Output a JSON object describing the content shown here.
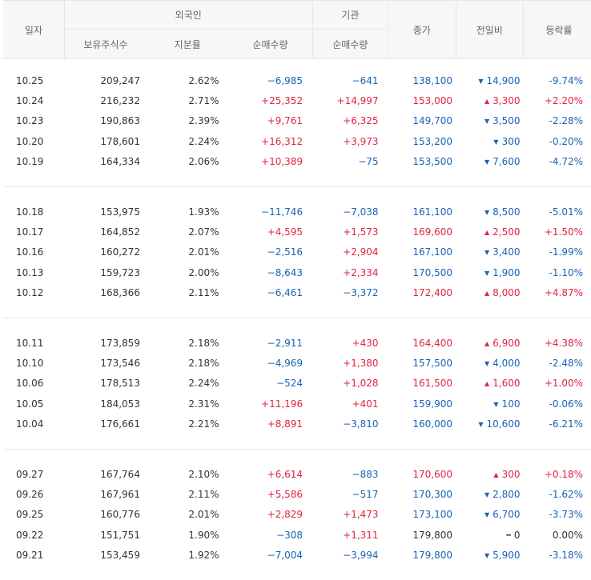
{
  "header": {
    "date": "일자",
    "foreign": "외국인",
    "institution": "기관",
    "close": "종가",
    "change": "전일비",
    "rate": "등락률",
    "holdings": "보유주식수",
    "ratio": "지분율",
    "foreign_net": "순매수량",
    "inst_net": "순매수량"
  },
  "colors": {
    "up": "#e12343",
    "down": "#1763b6",
    "border": "#e4e6ea",
    "header_bg": "#f6f7f9"
  },
  "groups": [
    [
      {
        "date": "10.25",
        "holdings": "209,247",
        "ratio": "2.62%",
        "foreign_net": "−6,985",
        "fn_dir": "down",
        "inst_net": "−641",
        "in_dir": "down",
        "close": "138,100",
        "close_dir": "down",
        "change": "14,900",
        "chg_dir": "down",
        "rate": "-9.74%",
        "rate_dir": "down"
      },
      {
        "date": "10.24",
        "holdings": "216,232",
        "ratio": "2.71%",
        "foreign_net": "+25,352",
        "fn_dir": "up",
        "inst_net": "+14,997",
        "in_dir": "up",
        "close": "153,000",
        "close_dir": "up",
        "change": "3,300",
        "chg_dir": "up",
        "rate": "+2.20%",
        "rate_dir": "up"
      },
      {
        "date": "10.23",
        "holdings": "190,863",
        "ratio": "2.39%",
        "foreign_net": "+9,761",
        "fn_dir": "up",
        "inst_net": "+6,325",
        "in_dir": "up",
        "close": "149,700",
        "close_dir": "down",
        "change": "3,500",
        "chg_dir": "down",
        "rate": "-2.28%",
        "rate_dir": "down"
      },
      {
        "date": "10.20",
        "holdings": "178,601",
        "ratio": "2.24%",
        "foreign_net": "+16,312",
        "fn_dir": "up",
        "inst_net": "+3,973",
        "in_dir": "up",
        "close": "153,200",
        "close_dir": "down",
        "change": "300",
        "chg_dir": "down",
        "rate": "-0.20%",
        "rate_dir": "down"
      },
      {
        "date": "10.19",
        "holdings": "164,334",
        "ratio": "2.06%",
        "foreign_net": "+10,389",
        "fn_dir": "up",
        "inst_net": "−75",
        "in_dir": "down",
        "close": "153,500",
        "close_dir": "down",
        "change": "7,600",
        "chg_dir": "down",
        "rate": "-4.72%",
        "rate_dir": "down"
      }
    ],
    [
      {
        "date": "10.18",
        "holdings": "153,975",
        "ratio": "1.93%",
        "foreign_net": "−11,746",
        "fn_dir": "down",
        "inst_net": "−7,038",
        "in_dir": "down",
        "close": "161,100",
        "close_dir": "down",
        "change": "8,500",
        "chg_dir": "down",
        "rate": "-5.01%",
        "rate_dir": "down"
      },
      {
        "date": "10.17",
        "holdings": "164,852",
        "ratio": "2.07%",
        "foreign_net": "+4,595",
        "fn_dir": "up",
        "inst_net": "+1,573",
        "in_dir": "up",
        "close": "169,600",
        "close_dir": "up",
        "change": "2,500",
        "chg_dir": "up",
        "rate": "+1.50%",
        "rate_dir": "up"
      },
      {
        "date": "10.16",
        "holdings": "160,272",
        "ratio": "2.01%",
        "foreign_net": "−2,516",
        "fn_dir": "down",
        "inst_net": "+2,904",
        "in_dir": "up",
        "close": "167,100",
        "close_dir": "down",
        "change": "3,400",
        "chg_dir": "down",
        "rate": "-1.99%",
        "rate_dir": "down"
      },
      {
        "date": "10.13",
        "holdings": "159,723",
        "ratio": "2.00%",
        "foreign_net": "−8,643",
        "fn_dir": "down",
        "inst_net": "+2,334",
        "in_dir": "up",
        "close": "170,500",
        "close_dir": "down",
        "change": "1,900",
        "chg_dir": "down",
        "rate": "-1.10%",
        "rate_dir": "down"
      },
      {
        "date": "10.12",
        "holdings": "168,366",
        "ratio": "2.11%",
        "foreign_net": "−6,461",
        "fn_dir": "down",
        "inst_net": "−3,372",
        "in_dir": "down",
        "close": "172,400",
        "close_dir": "up",
        "change": "8,000",
        "chg_dir": "up",
        "rate": "+4.87%",
        "rate_dir": "up"
      }
    ],
    [
      {
        "date": "10.11",
        "holdings": "173,859",
        "ratio": "2.18%",
        "foreign_net": "−2,911",
        "fn_dir": "down",
        "inst_net": "+430",
        "in_dir": "up",
        "close": "164,400",
        "close_dir": "up",
        "change": "6,900",
        "chg_dir": "up",
        "rate": "+4.38%",
        "rate_dir": "up"
      },
      {
        "date": "10.10",
        "holdings": "173,546",
        "ratio": "2.18%",
        "foreign_net": "−4,969",
        "fn_dir": "down",
        "inst_net": "+1,380",
        "in_dir": "up",
        "close": "157,500",
        "close_dir": "down",
        "change": "4,000",
        "chg_dir": "down",
        "rate": "-2.48%",
        "rate_dir": "down"
      },
      {
        "date": "10.06",
        "holdings": "178,513",
        "ratio": "2.24%",
        "foreign_net": "−524",
        "fn_dir": "down",
        "inst_net": "+1,028",
        "in_dir": "up",
        "close": "161,500",
        "close_dir": "up",
        "change": "1,600",
        "chg_dir": "up",
        "rate": "+1.00%",
        "rate_dir": "up"
      },
      {
        "date": "10.05",
        "holdings": "184,053",
        "ratio": "2.31%",
        "foreign_net": "+11,196",
        "fn_dir": "up",
        "inst_net": "+401",
        "in_dir": "up",
        "close": "159,900",
        "close_dir": "down",
        "change": "100",
        "chg_dir": "down",
        "rate": "-0.06%",
        "rate_dir": "down"
      },
      {
        "date": "10.04",
        "holdings": "176,661",
        "ratio": "2.21%",
        "foreign_net": "+8,891",
        "fn_dir": "up",
        "inst_net": "−3,810",
        "in_dir": "down",
        "close": "160,000",
        "close_dir": "down",
        "change": "10,600",
        "chg_dir": "down",
        "rate": "-6.21%",
        "rate_dir": "down"
      }
    ],
    [
      {
        "date": "09.27",
        "holdings": "167,764",
        "ratio": "2.10%",
        "foreign_net": "+6,614",
        "fn_dir": "up",
        "inst_net": "−883",
        "in_dir": "down",
        "close": "170,600",
        "close_dir": "up",
        "change": "300",
        "chg_dir": "up",
        "rate": "+0.18%",
        "rate_dir": "up"
      },
      {
        "date": "09.26",
        "holdings": "167,961",
        "ratio": "2.11%",
        "foreign_net": "+5,586",
        "fn_dir": "up",
        "inst_net": "−517",
        "in_dir": "down",
        "close": "170,300",
        "close_dir": "down",
        "change": "2,800",
        "chg_dir": "down",
        "rate": "-1.62%",
        "rate_dir": "down"
      },
      {
        "date": "09.25",
        "holdings": "160,776",
        "ratio": "2.01%",
        "foreign_net": "+2,829",
        "fn_dir": "up",
        "inst_net": "+1,473",
        "in_dir": "up",
        "close": "173,100",
        "close_dir": "down",
        "change": "6,700",
        "chg_dir": "down",
        "rate": "-3.73%",
        "rate_dir": "down"
      },
      {
        "date": "09.22",
        "holdings": "151,751",
        "ratio": "1.90%",
        "foreign_net": "−308",
        "fn_dir": "down",
        "inst_net": "+1,311",
        "in_dir": "up",
        "close": "179,800",
        "close_dir": "flat",
        "change": "0",
        "chg_dir": "flat",
        "rate": "0.00%",
        "rate_dir": "flat"
      },
      {
        "date": "09.21",
        "holdings": "153,459",
        "ratio": "1.92%",
        "foreign_net": "−7,004",
        "fn_dir": "down",
        "inst_net": "−3,994",
        "in_dir": "down",
        "close": "179,800",
        "close_dir": "down",
        "change": "5,900",
        "chg_dir": "down",
        "rate": "-3.18%",
        "rate_dir": "down"
      }
    ]
  ]
}
